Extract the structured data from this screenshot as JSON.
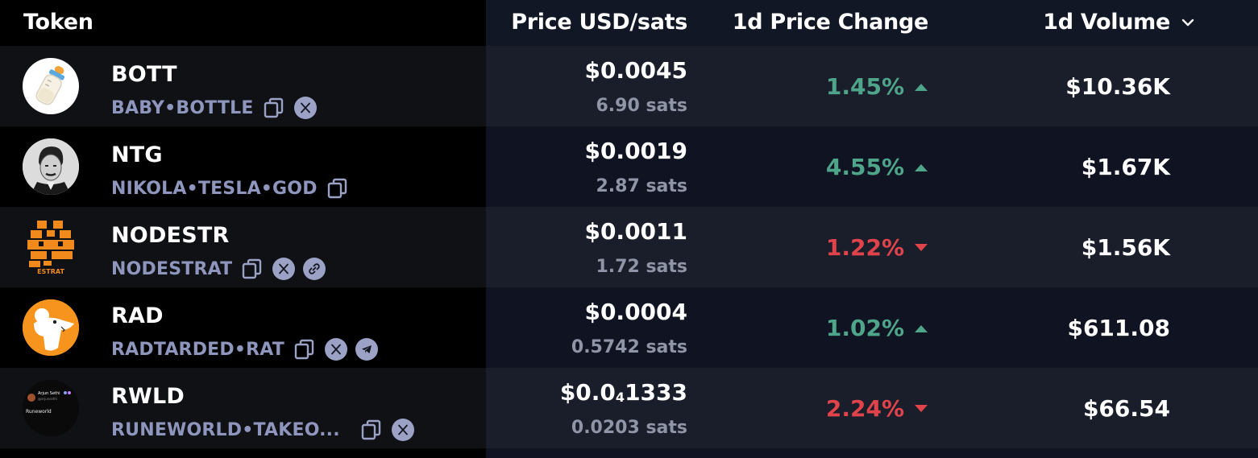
{
  "header": {
    "token": "Token",
    "price": "Price USD/sats",
    "change": "1d Price Change",
    "volume": "1d Volume"
  },
  "colors": {
    "up": "#4fa58a",
    "down": "#e0434a",
    "secondary_text": "#8f96bd"
  },
  "rows": [
    {
      "symbol": "BOTT",
      "name": "BABY•BOTTLE",
      "price_main": "$0.0045",
      "sats": "6.90 sats",
      "change": "1.45%",
      "direction": "up",
      "volume": "$10.36K",
      "avatar_icon": "baby-bottle-icon",
      "links": [
        "copy-icon",
        "x-icon"
      ]
    },
    {
      "symbol": "NTG",
      "name": "NIKOLA•TESLA•GOD",
      "price_main": "$0.0019",
      "sats": "2.87 sats",
      "change": "4.55%",
      "direction": "up",
      "volume": "$1.67K",
      "avatar_icon": "tesla-portrait-icon",
      "links": [
        "copy-icon"
      ]
    },
    {
      "symbol": "NODESTR",
      "name": "NODESTRAT",
      "price_main": "$0.0011",
      "sats": "1.72 sats",
      "change": "1.22%",
      "direction": "down",
      "volume": "$1.56K",
      "avatar_icon": "nodestrat-pixel-logo",
      "avatar_text": "ESTRAT",
      "links": [
        "copy-icon",
        "x-icon",
        "link-icon"
      ]
    },
    {
      "symbol": "RAD",
      "name": "RADTARDED•RAT",
      "price_main": "$0.0004",
      "sats": "0.5742 sats",
      "change": "1.02%",
      "direction": "up",
      "volume": "$611.08",
      "avatar_icon": "rat-icon",
      "links": [
        "copy-icon",
        "x-icon",
        "telegram-icon"
      ]
    },
    {
      "symbol": "RWLD",
      "name": "RUNEWORLD•TAKEO...",
      "price_prefix": "$0.0",
      "price_sub": "4",
      "price_rest": "1333",
      "sats": "0.0203 sats",
      "change": "2.24%",
      "direction": "down",
      "volume": "$66.54",
      "avatar_icon": "runeworld-tweet-avatar",
      "avatar_name": "Arjun Sethi",
      "avatar_handle": "@arjunsethi",
      "avatar_caption": "Runeworld",
      "links": [
        "copy-icon",
        "x-icon"
      ]
    }
  ]
}
